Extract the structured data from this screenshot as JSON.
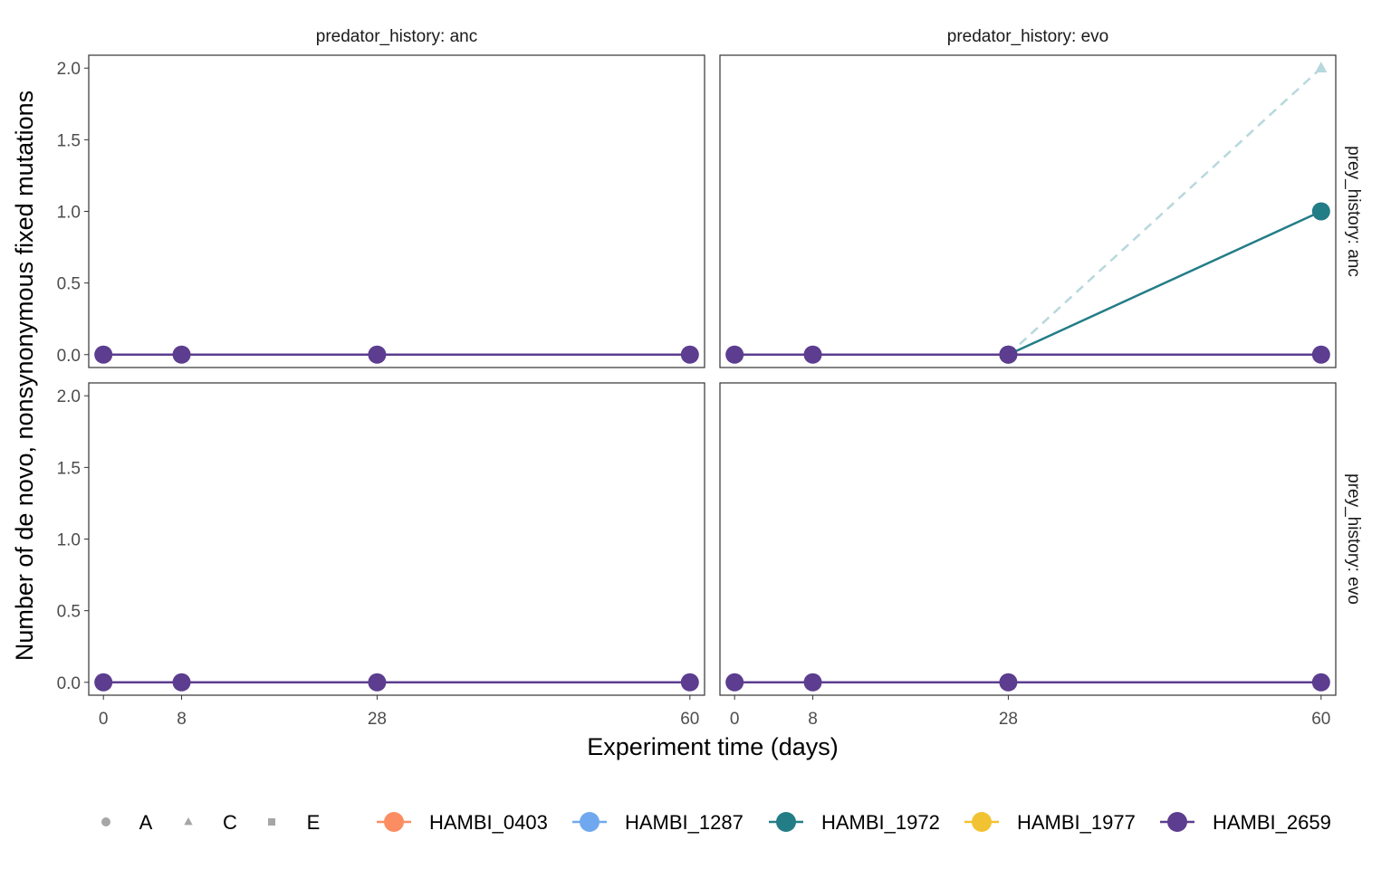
{
  "chart_data": {
    "type": "line",
    "title": "",
    "xlabel": "Experiment time (days)",
    "ylabel": "Number of de novo, nonsynonymous fixed mutations",
    "x_ticks": [
      0,
      8,
      28,
      60
    ],
    "y_ticks": [
      0.0,
      0.5,
      1.0,
      1.5,
      2.0
    ],
    "y_tick_labels": [
      "0.0",
      "0.5",
      "1.0",
      "1.5",
      "2.0"
    ],
    "xlim": [
      -1.5,
      61.5
    ],
    "ylim": [
      -0.09,
      2.09
    ],
    "grid": false,
    "facet_col_var": "predator_history",
    "facet_row_var": "prey_history",
    "col_labels": [
      "predator_history: anc",
      "predator_history: evo"
    ],
    "row_labels": [
      "prey_history: anc",
      "prey_history: evo"
    ],
    "panels": [
      {
        "row": 0,
        "col": 0,
        "series": [
          {
            "name": "HAMBI_2659",
            "replicate": "A",
            "x": [
              0,
              8,
              28,
              60
            ],
            "y": [
              0,
              0,
              0,
              0
            ]
          }
        ]
      },
      {
        "row": 0,
        "col": 1,
        "series": [
          {
            "name": "HAMBI_1972",
            "replicate": "C",
            "x": [
              28,
              60
            ],
            "y": [
              0,
              2
            ]
          },
          {
            "name": "HAMBI_1972",
            "replicate": "A",
            "x": [
              28,
              60
            ],
            "y": [
              0,
              1
            ]
          },
          {
            "name": "HAMBI_2659",
            "replicate": "A",
            "x": [
              0,
              8,
              28,
              60
            ],
            "y": [
              0,
              0,
              0,
              0
            ]
          }
        ]
      },
      {
        "row": 1,
        "col": 0,
        "series": [
          {
            "name": "HAMBI_2659",
            "replicate": "A",
            "x": [
              0,
              8,
              28,
              60
            ],
            "y": [
              0,
              0,
              0,
              0
            ]
          }
        ]
      },
      {
        "row": 1,
        "col": 1,
        "series": [
          {
            "name": "HAMBI_2659",
            "replicate": "A",
            "x": [
              0,
              8,
              28,
              60
            ],
            "y": [
              0,
              0,
              0,
              0
            ]
          }
        ]
      }
    ],
    "legend": {
      "position": "bottom",
      "shapes": [
        {
          "label": "A",
          "shape": "circle"
        },
        {
          "label": "C",
          "shape": "triangle"
        },
        {
          "label": "E",
          "shape": "square"
        }
      ],
      "strains": [
        {
          "label": "HAMBI_0403",
          "color": "#fc8d62"
        },
        {
          "label": "HAMBI_1287",
          "color": "#6fa8ee"
        },
        {
          "label": "HAMBI_1972",
          "color": "#237d87"
        },
        {
          "label": "HAMBI_1977",
          "color": "#f1c232"
        },
        {
          "label": "HAMBI_2659",
          "color": "#5c3d8f"
        }
      ]
    },
    "colors": {
      "HAMBI_0403": "#fc8d62",
      "HAMBI_1287": "#6fa8ee",
      "HAMBI_1972": "#237d87",
      "HAMBI_1977": "#f1c232",
      "HAMBI_2659": "#5c3d8f",
      "replicate_C_line": "#b7d8dc",
      "shape_legend": "#a6a6a6",
      "axis_text": "#4d4d4d"
    }
  }
}
